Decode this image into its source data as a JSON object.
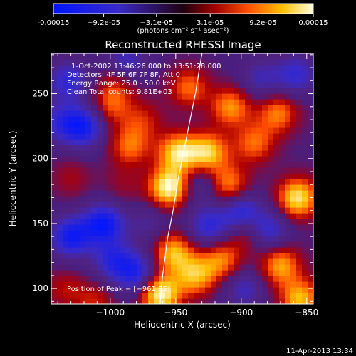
{
  "chart_data": {
    "type": "heatmap",
    "title": "Reconstructed RHESSI Image",
    "xlabel": "Heliocentric X (arcsec)",
    "ylabel": "Heliocentric Y (arcsec)",
    "xlim": [
      -1045,
      -845
    ],
    "ylim": [
      88,
      281
    ],
    "xticks": [
      -1000,
      -950,
      -900,
      -850
    ],
    "xtick_labels": [
      "−1000",
      "−950",
      "−900",
      "−850"
    ],
    "yticks": [
      100,
      150,
      200,
      250
    ],
    "ytick_labels": [
      "100",
      "150",
      "200",
      "250"
    ],
    "colorbar": {
      "range": [
        -0.00015,
        0.00015
      ],
      "tick_values": [
        -0.00015,
        -9.2e-05,
        -3.1e-05,
        3.1e-05,
        9.2e-05,
        0.00015
      ],
      "tick_labels": [
        "-0.00015",
        "−9.2e-05",
        "−3.1e-05",
        "3.1e-05",
        "9.2e-05",
        "0.00015"
      ],
      "units": "(photons cm⁻² s⁻¹ asec⁻²)"
    },
    "info_lines": [
      "1-Oct-2002 13:46:26.000 to 13:51:28.000",
      "Detectors: 4F 5F 6F 7F 8F, Att 0",
      "Energy Range: 25.0 - 50.0 keV",
      "Clean     Total counts: 9.81E+03"
    ],
    "peak_label": "Position of Peak = [−961,85]",
    "limb_curve": [
      [
        -962,
        88
      ],
      [
        -960,
        110
      ],
      [
        -956,
        140
      ],
      [
        -952,
        160
      ],
      [
        -948,
        185
      ],
      [
        -942,
        215
      ],
      [
        -935,
        250
      ],
      [
        -930,
        281
      ]
    ],
    "blobs": [
      {
        "x": -962,
        "y": 96,
        "v": 1.0
      },
      {
        "x": -955,
        "y": 178,
        "v": 1.0
      },
      {
        "x": -948,
        "y": 205,
        "v": 0.85
      },
      {
        "x": -952,
        "y": 128,
        "v": 0.75
      },
      {
        "x": -935,
        "y": 110,
        "v": 0.7
      },
      {
        "x": -915,
        "y": 122,
        "v": 0.6
      },
      {
        "x": -925,
        "y": 205,
        "v": 0.8
      },
      {
        "x": -910,
        "y": 180,
        "v": 0.65
      },
      {
        "x": -908,
        "y": 240,
        "v": 0.65
      },
      {
        "x": -940,
        "y": 255,
        "v": 0.55
      },
      {
        "x": -890,
        "y": 212,
        "v": 0.55
      },
      {
        "x": -872,
        "y": 235,
        "v": 0.6
      },
      {
        "x": -857,
        "y": 170,
        "v": 0.9
      },
      {
        "x": -870,
        "y": 118,
        "v": 0.7
      },
      {
        "x": -895,
        "y": 145,
        "v": 0.5
      },
      {
        "x": -855,
        "y": 92,
        "v": 0.75
      },
      {
        "x": -985,
        "y": 210,
        "v": 0.55
      },
      {
        "x": -995,
        "y": 258,
        "v": 0.35
      },
      {
        "x": -1000,
        "y": 240,
        "v": 0.45
      },
      {
        "x": -1030,
        "y": 185,
        "v": 0.25
      },
      {
        "x": -975,
        "y": 230,
        "v": 0.35
      },
      {
        "x": -1035,
        "y": 100,
        "v": 0.3
      },
      {
        "x": -1012,
        "y": 90,
        "v": 0.35
      },
      {
        "x": -990,
        "y": 180,
        "v": 0.2
      },
      {
        "x": -1005,
        "y": 150,
        "v": -0.9
      },
      {
        "x": -1030,
        "y": 140,
        "v": -0.85
      },
      {
        "x": -1020,
        "y": 225,
        "v": -0.8
      },
      {
        "x": -1032,
        "y": 260,
        "v": -0.6
      },
      {
        "x": -980,
        "y": 112,
        "v": -0.7
      },
      {
        "x": -998,
        "y": 122,
        "v": -0.6
      },
      {
        "x": -988,
        "y": 275,
        "v": -0.5
      },
      {
        "x": -970,
        "y": 150,
        "v": -0.3
      },
      {
        "x": -925,
        "y": 148,
        "v": -0.6
      },
      {
        "x": -900,
        "y": 158,
        "v": -0.75
      },
      {
        "x": -880,
        "y": 145,
        "v": -0.65
      },
      {
        "x": -930,
        "y": 180,
        "v": -0.35
      },
      {
        "x": -858,
        "y": 265,
        "v": -0.55
      },
      {
        "x": -885,
        "y": 262,
        "v": -0.4
      },
      {
        "x": -898,
        "y": 100,
        "v": -0.45
      },
      {
        "x": -1038,
        "y": 228,
        "v": -0.5
      }
    ]
  },
  "footer": {
    "date": "11-Apr-2013 13:34"
  }
}
